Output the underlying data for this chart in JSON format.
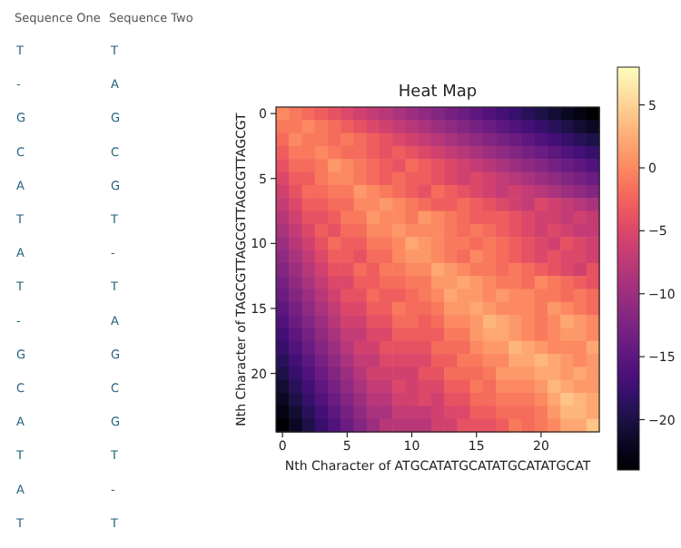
{
  "chart_data": [
    {
      "type": "other",
      "categories": [
        "Sequence One",
        "Sequence Two"
      ],
      "cell_labels": [
        [
          "T",
          "T"
        ],
        [
          "-",
          "A"
        ],
        [
          "G",
          "G"
        ],
        [
          "C",
          "C"
        ],
        [
          "A",
          "G"
        ],
        [
          "T",
          "T"
        ],
        [
          "A",
          "-"
        ],
        [
          "T",
          "T"
        ],
        [
          "-",
          "A"
        ],
        [
          "G",
          "G"
        ],
        [
          "C",
          "C"
        ],
        [
          "A",
          "G"
        ],
        [
          "T",
          "T"
        ],
        [
          "A",
          "-"
        ],
        [
          "T",
          "T"
        ]
      ]
    },
    {
      "type": "heatmap",
      "title": "Heat Map",
      "xlabel": "Nth Character of ATGCATATGCATATGCATATGCAT",
      "ylabel": "Nth Character of TAGCGTTAGCGTTAGCGTTAGCGT",
      "categories": [
        "0",
        null,
        null,
        null,
        null,
        "5",
        null,
        null,
        null,
        null,
        "10",
        null,
        null,
        null,
        null,
        "15",
        null,
        null,
        null,
        null,
        "20",
        null,
        null,
        null,
        null
      ],
      "y_categories": [
        "0",
        null,
        null,
        null,
        null,
        "5",
        null,
        null,
        null,
        null,
        "10",
        null,
        null,
        null,
        null,
        "15",
        null,
        null,
        null,
        null,
        "20",
        null,
        null,
        null,
        null
      ],
      "clim": [
        -24,
        8
      ],
      "cticks": [
        5,
        0,
        {
          "value": -5,
          "label": "−5"
        },
        {
          "value": -10,
          "label": "−10"
        },
        {
          "value": -15,
          "label": "−15"
        },
        {
          "value": -20,
          "label": "−20"
        }
      ],
      "cells": [
        [
          0,
          -1,
          -2,
          -3,
          -4,
          -5,
          -6,
          -7,
          -8,
          -9,
          -10,
          -11,
          -12,
          -13,
          -14,
          -15,
          -16,
          -17,
          -18,
          -19,
          -20,
          -21,
          -22,
          -23,
          -24
        ],
        [
          -1,
          -1,
          0,
          -1,
          -2,
          -3,
          -4,
          -5,
          -6,
          -7,
          -8,
          -9,
          -10,
          -11,
          -12,
          -13,
          -14,
          -15,
          -16,
          -17,
          -18,
          -19,
          -20,
          -21,
          -22
        ],
        [
          -2,
          0,
          -1,
          -1,
          -2,
          -1,
          -2,
          -3,
          -4,
          -5,
          -6,
          -7,
          -8,
          -9,
          -10,
          -11,
          -12,
          -13,
          -14,
          -15,
          -16,
          -17,
          -18,
          -19,
          -20
        ],
        [
          -3,
          -1,
          -1,
          0,
          -1,
          -2,
          -2,
          -3,
          -4,
          -3,
          -4,
          -5,
          -6,
          -7,
          -8,
          -9,
          -10,
          -11,
          -12,
          -13,
          -14,
          -15,
          -16,
          -17,
          -18
        ],
        [
          -4,
          -2,
          -2,
          -1,
          1,
          0,
          -1,
          -2,
          -3,
          -4,
          -2,
          -3,
          -4,
          -5,
          -6,
          -7,
          -8,
          -9,
          -10,
          -11,
          -12,
          -13,
          -14,
          -15,
          -16
        ],
        [
          -5,
          -3,
          -3,
          -1,
          0,
          0,
          -1,
          -2,
          -3,
          -2,
          -3,
          -3,
          -4,
          -5,
          -6,
          -5,
          -6,
          -7,
          -8,
          -9,
          -10,
          -11,
          -12,
          -13,
          -14
        ],
        [
          -6,
          -4,
          -2,
          -2,
          -1,
          -1,
          1,
          0,
          -1,
          -2,
          -3,
          -4,
          -2,
          -3,
          -4,
          -5,
          -6,
          -7,
          -6,
          -7,
          -8,
          -9,
          -10,
          -11,
          -12
        ],
        [
          -7,
          -5,
          -3,
          -3,
          -2,
          -2,
          0,
          0,
          1,
          0,
          -1,
          -2,
          -3,
          -3,
          -2,
          -3,
          -4,
          -5,
          -6,
          -7,
          -5,
          -6,
          -7,
          -8,
          -9
        ],
        [
          -8,
          -6,
          -4,
          -4,
          -3,
          -1,
          -1,
          1,
          0,
          0,
          -1,
          1,
          0,
          -1,
          -2,
          -3,
          -3,
          -3,
          -4,
          -5,
          -6,
          -6,
          -7,
          -6,
          -7
        ],
        [
          -9,
          -7,
          -5,
          -3,
          -4,
          -2,
          -2,
          0,
          0,
          1,
          0,
          0,
          0,
          -1,
          -2,
          -1,
          -2,
          -3,
          -4,
          -5,
          -6,
          -5,
          -6,
          -7,
          -7
        ],
        [
          -10,
          -8,
          -6,
          -4,
          -2,
          -3,
          -3,
          -1,
          -1,
          0,
          2,
          1,
          0,
          -1,
          -1,
          -2,
          -1,
          -2,
          -3,
          -4,
          -5,
          -6,
          -4,
          -5,
          -6
        ],
        [
          -11,
          -9,
          -7,
          -5,
          -3,
          -3,
          -4,
          -2,
          -2,
          0,
          1,
          1,
          0,
          -1,
          -2,
          0,
          -1,
          -2,
          -3,
          -4,
          -5,
          -4,
          -5,
          -5,
          -6
        ],
        [
          -12,
          -10,
          -8,
          -6,
          -4,
          -4,
          -2,
          -3,
          -1,
          -1,
          0,
          0,
          2,
          1,
          0,
          -1,
          -1,
          -2,
          -1,
          -2,
          -3,
          -4,
          -5,
          -6,
          -4
        ],
        [
          -13,
          -11,
          -9,
          -7,
          -5,
          -5,
          -3,
          -3,
          -2,
          -2,
          -1,
          -1,
          1,
          1,
          2,
          1,
          0,
          -1,
          -1,
          -2,
          0,
          -1,
          -2,
          -3,
          -4
        ],
        [
          -14,
          -12,
          -10,
          -8,
          -6,
          -4,
          -4,
          -2,
          -3,
          -3,
          -2,
          -1,
          0,
          2,
          1,
          1,
          0,
          1,
          0,
          0,
          -1,
          -1,
          -2,
          -1,
          -2
        ],
        [
          -15,
          -13,
          -11,
          -9,
          -7,
          -5,
          -5,
          -3,
          -3,
          -1,
          -2,
          -2,
          -1,
          1,
          1,
          2,
          1,
          0,
          0,
          0,
          -1,
          1,
          0,
          -1,
          -2
        ],
        [
          -16,
          -14,
          -12,
          -10,
          -8,
          -6,
          -6,
          -4,
          -4,
          -2,
          -2,
          -3,
          -2,
          0,
          0,
          1,
          3,
          2,
          1,
          0,
          -1,
          0,
          2,
          1,
          0
        ],
        [
          -17,
          -15,
          -13,
          -11,
          -9,
          -7,
          -7,
          -5,
          -5,
          -3,
          -3,
          -3,
          -3,
          -1,
          -1,
          1,
          2,
          2,
          1,
          0,
          -1,
          0,
          1,
          1,
          0
        ],
        [
          -18,
          -16,
          -14,
          -12,
          -10,
          -8,
          -6,
          -6,
          -4,
          -4,
          -4,
          -4,
          -2,
          -2,
          -2,
          0,
          1,
          1,
          3,
          2,
          1,
          0,
          0,
          0,
          2
        ],
        [
          -19,
          -17,
          -15,
          -13,
          -11,
          -9,
          -7,
          -7,
          -5,
          -5,
          -5,
          -5,
          -3,
          -3,
          -1,
          -1,
          0,
          0,
          2,
          2,
          3,
          2,
          1,
          0,
          1
        ],
        [
          -20,
          -18,
          -16,
          -14,
          -12,
          -10,
          -8,
          -6,
          -6,
          -6,
          -6,
          -4,
          -4,
          -2,
          -2,
          -2,
          -1,
          1,
          1,
          1,
          2,
          2,
          1,
          2,
          1
        ],
        [
          -21,
          -19,
          -17,
          -15,
          -13,
          -11,
          -9,
          -7,
          -7,
          -5,
          -6,
          -5,
          -5,
          -3,
          -3,
          -1,
          -2,
          0,
          0,
          0,
          1,
          3,
          2,
          1,
          1
        ],
        [
          -22,
          -20,
          -18,
          -16,
          -14,
          -12,
          -10,
          -8,
          -8,
          -6,
          -6,
          -5,
          -6,
          -4,
          -4,
          -2,
          -2,
          -1,
          -1,
          -1,
          0,
          2,
          4,
          3,
          2
        ],
        [
          -23,
          -21,
          -19,
          -17,
          -15,
          -13,
          -11,
          -9,
          -9,
          -7,
          -7,
          -7,
          -6,
          -5,
          -5,
          -3,
          -3,
          -2,
          -2,
          -2,
          -1,
          1,
          3,
          3,
          2
        ],
        [
          -24,
          -22,
          -20,
          -18,
          -16,
          -14,
          -12,
          -10,
          -8,
          -8,
          -8,
          -8,
          -6,
          -6,
          -4,
          -4,
          -4,
          -3,
          -1,
          -2,
          -1,
          0,
          2,
          2,
          4
        ]
      ]
    }
  ]
}
